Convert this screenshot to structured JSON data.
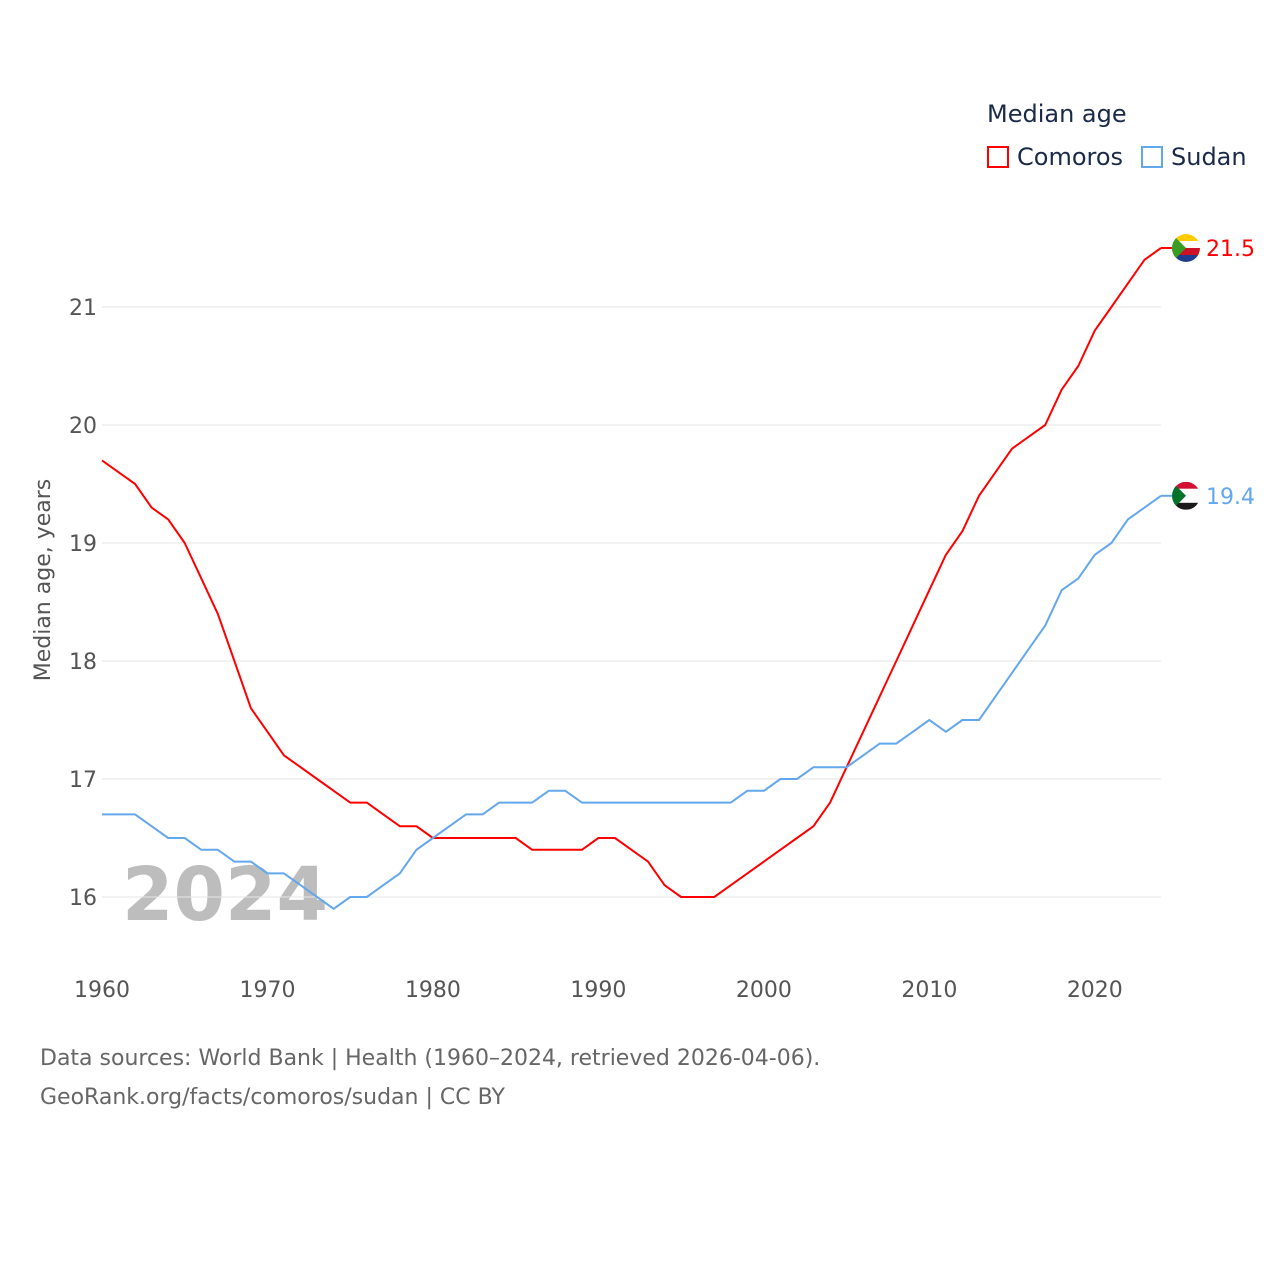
{
  "chart_data": {
    "type": "line",
    "title": "Median age",
    "xlabel": "",
    "ylabel": "Median age, years",
    "xlim": [
      1960,
      2024
    ],
    "ylim": [
      15.5,
      21.8
    ],
    "yticks": [
      16,
      17,
      18,
      19,
      20,
      21
    ],
    "xticks": [
      1960,
      1970,
      1980,
      1990,
      2000,
      2010,
      2020
    ],
    "grid": true,
    "legend_position": "top-right",
    "year_label": "2024",
    "x": [
      1960,
      1961,
      1962,
      1963,
      1964,
      1965,
      1966,
      1967,
      1968,
      1969,
      1970,
      1971,
      1972,
      1973,
      1974,
      1975,
      1976,
      1977,
      1978,
      1979,
      1980,
      1981,
      1982,
      1983,
      1984,
      1985,
      1986,
      1987,
      1988,
      1989,
      1990,
      1991,
      1992,
      1993,
      1994,
      1995,
      1996,
      1997,
      1998,
      1999,
      2000,
      2001,
      2002,
      2003,
      2004,
      2005,
      2006,
      2007,
      2008,
      2009,
      2010,
      2011,
      2012,
      2013,
      2014,
      2015,
      2016,
      2017,
      2018,
      2019,
      2020,
      2021,
      2022,
      2023,
      2024
    ],
    "series": [
      {
        "name": "Comoros",
        "color": "#ff0000",
        "end_label": "21.5",
        "values": [
          19.7,
          19.6,
          19.5,
          19.3,
          19.2,
          19.0,
          18.7,
          18.4,
          18.0,
          17.6,
          17.4,
          17.2,
          17.1,
          17.0,
          16.9,
          16.8,
          16.8,
          16.7,
          16.6,
          16.6,
          16.5,
          16.5,
          16.5,
          16.5,
          16.5,
          16.5,
          16.4,
          16.4,
          16.4,
          16.4,
          16.5,
          16.5,
          16.4,
          16.3,
          16.1,
          16.0,
          16.0,
          16.0,
          16.1,
          16.2,
          16.3,
          16.4,
          16.5,
          16.6,
          16.8,
          17.1,
          17.4,
          17.7,
          18.0,
          18.3,
          18.6,
          18.9,
          19.1,
          19.4,
          19.6,
          19.8,
          19.9,
          20.0,
          20.3,
          20.5,
          20.8,
          21.0,
          21.2,
          21.4,
          21.5
        ]
      },
      {
        "name": "Sudan",
        "color": "#63a7ec",
        "end_label": "19.4",
        "values": [
          16.7,
          16.7,
          16.7,
          16.6,
          16.5,
          16.5,
          16.4,
          16.4,
          16.3,
          16.3,
          16.2,
          16.2,
          16.1,
          16.0,
          15.9,
          16.0,
          16.0,
          16.1,
          16.2,
          16.4,
          16.5,
          16.6,
          16.7,
          16.7,
          16.8,
          16.8,
          16.8,
          16.9,
          16.9,
          16.8,
          16.8,
          16.8,
          16.8,
          16.8,
          16.8,
          16.8,
          16.8,
          16.8,
          16.8,
          16.9,
          16.9,
          17.0,
          17.0,
          17.1,
          17.1,
          17.1,
          17.2,
          17.3,
          17.3,
          17.4,
          17.5,
          17.4,
          17.5,
          17.5,
          17.7,
          17.9,
          18.1,
          18.3,
          18.6,
          18.7,
          18.9,
          19.0,
          19.2,
          19.3,
          19.4
        ]
      }
    ]
  },
  "legend": {
    "title": "Median age",
    "items": [
      "Comoros",
      "Sudan"
    ]
  },
  "footer": {
    "line1": "Data sources: World Bank | Health (1960–2024, retrieved 2026-04-06).",
    "line2": "GeoRank.org/facts/comoros/sudan | CC BY"
  }
}
